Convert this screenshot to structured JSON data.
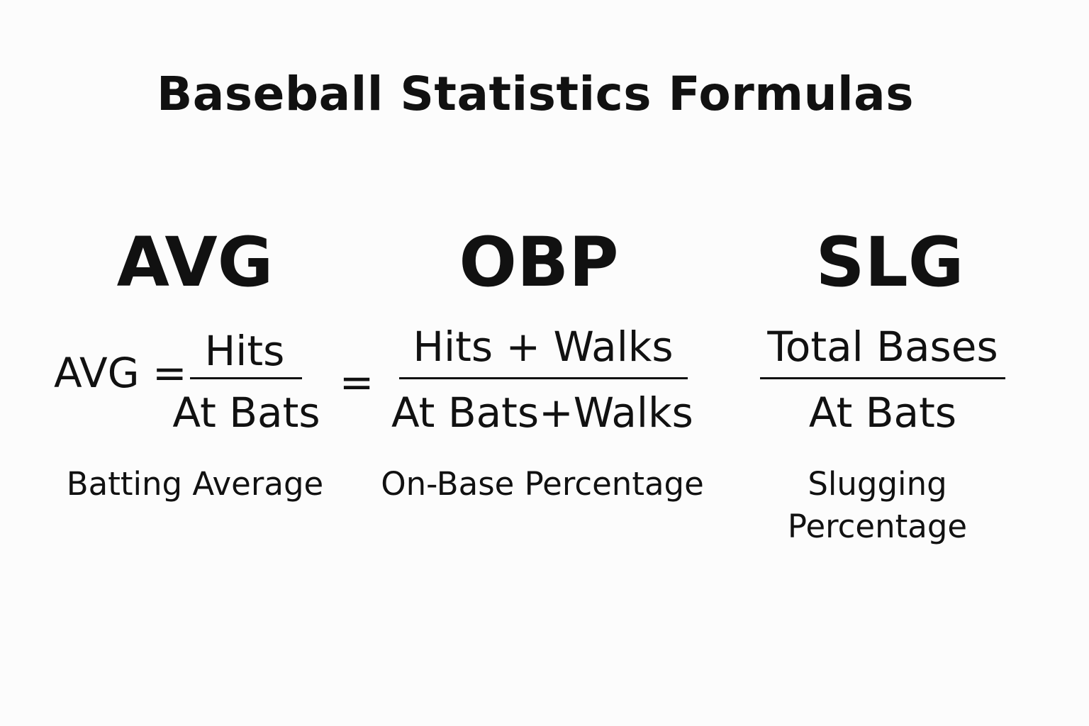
{
  "title": "Baseball Statistics Formulas",
  "avg": {
    "abbr": "AVG",
    "lhs": "AVG =",
    "numerator": "Hits",
    "denominator": "At Bats",
    "label": "Batting Average"
  },
  "obp": {
    "abbr": "OBP",
    "lhs": "=",
    "numerator": "Hits + Walks",
    "denominator": "At Bats+Walks",
    "label": "On-Base Percentage"
  },
  "slg": {
    "abbr": "SLG",
    "numerator": "Total Bases",
    "denominator": "At Bats",
    "label_line1": "Slugging",
    "label_line2": "Percentage"
  }
}
